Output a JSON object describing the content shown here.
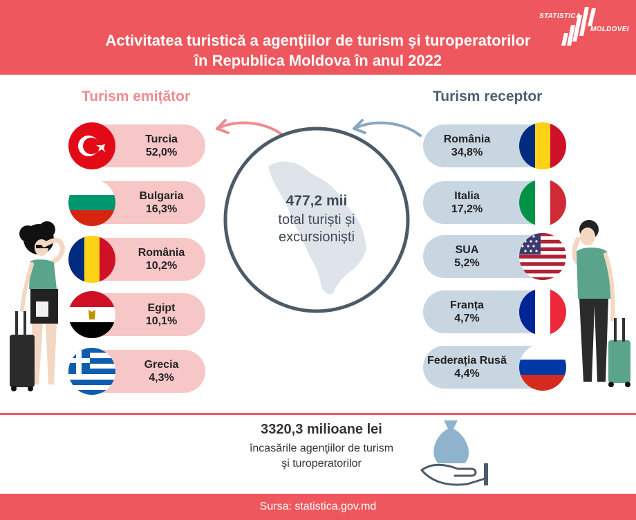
{
  "header": {
    "title_line1": "Activitatea turistică a agenţiilor de turism şi turoperatorilor",
    "title_line2": "în Republica Moldova în anul 2022",
    "logo_line1": "STATISTICA",
    "logo_line2": "MOLDOVEI"
  },
  "chart_data": [
    {
      "type": "table",
      "title": "Turism emițător",
      "categories": [
        "Turcia",
        "Bulgaria",
        "România",
        "Egipt",
        "Grecia"
      ],
      "values": [
        52.0,
        16.3,
        10.2,
        10.1,
        4.3
      ],
      "labels": [
        "52,0%",
        "16,3%",
        "10,2%",
        "10,1%",
        "4,3%"
      ]
    },
    {
      "type": "table",
      "title": "Turism receptor",
      "categories": [
        "România",
        "Italia",
        "SUA",
        "Franța",
        "Federația Rusă"
      ],
      "values": [
        34.8,
        17.2,
        5.2,
        4.7,
        4.4
      ],
      "labels": [
        "34,8%",
        "17,2%",
        "5,2%",
        "4,7%",
        "4,4%"
      ]
    }
  ],
  "center": {
    "value": "477,2 mii",
    "label_line1": "total turiști și",
    "label_line2": "excursioniști"
  },
  "revenue": {
    "value": "3320,3 milioane lei",
    "label_line1": "încasările agenţiilor de turism",
    "label_line2": "şi turoperatorilor"
  },
  "footer": {
    "source": "Sursa: statistica.gov.md"
  },
  "colors": {
    "accent": "#ee575d",
    "outbound_pill": "#f7c6c7",
    "inbound_pill": "#c8d6e2",
    "outbound_title": "#ee8c91",
    "inbound_title": "#4f5f70"
  }
}
